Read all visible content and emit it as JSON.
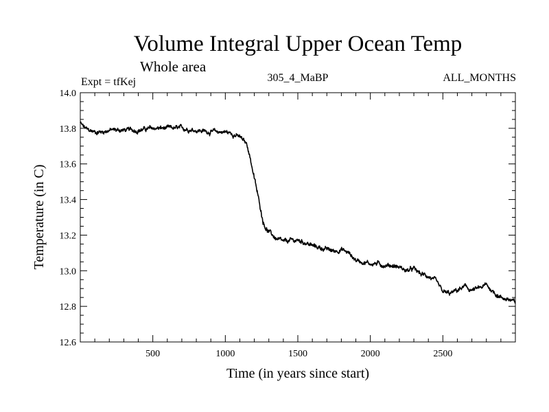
{
  "chart_data": {
    "type": "line",
    "title": "Volume Integral Upper Ocean Temp",
    "subtitle": "Whole area",
    "header_left": "Expt = tfKej",
    "header_center": "305_4_MaBP",
    "header_right": "ALL_MONTHS",
    "xlabel": "Time (in years since start)",
    "ylabel": "Temperature (in C)",
    "xlim": [
      0,
      3000
    ],
    "ylim": [
      12.6,
      14.0
    ],
    "xticks": [
      500,
      1000,
      1500,
      2000,
      2500
    ],
    "xtick_labels": [
      "500",
      "1000",
      "1500",
      "2000",
      "2500"
    ],
    "yticks": [
      12.6,
      12.8,
      13.0,
      13.2,
      13.4,
      13.6,
      13.8,
      14.0
    ],
    "ytick_labels": [
      "12.6",
      "12.8",
      "13.0",
      "13.2",
      "13.4",
      "13.6",
      "13.8",
      "14.0"
    ],
    "grid": false,
    "line_color": "#000000",
    "series": [
      {
        "x": [
          0,
          20,
          50,
          100,
          150,
          200,
          300,
          400,
          500,
          600,
          700,
          800,
          900,
          1000,
          1050,
          1100,
          1150,
          1170,
          1200,
          1230,
          1260,
          1280,
          1300,
          1350,
          1400,
          1450,
          1500,
          1550,
          1600,
          1650,
          1700,
          1750,
          1800,
          1850,
          1900,
          1950,
          2000,
          2050,
          2100,
          2150,
          2200,
          2250,
          2300,
          2350,
          2400,
          2450,
          2500,
          2550,
          2600,
          2650,
          2700,
          2750,
          2800,
          2850,
          2900,
          2950,
          3000
        ],
        "y": [
          13.83,
          13.81,
          13.79,
          13.78,
          13.78,
          13.79,
          13.79,
          13.79,
          13.8,
          13.8,
          13.8,
          13.79,
          13.78,
          13.78,
          13.77,
          13.75,
          13.71,
          13.64,
          13.52,
          13.4,
          13.28,
          13.24,
          13.22,
          13.18,
          13.16,
          13.17,
          13.17,
          13.16,
          13.14,
          13.13,
          13.12,
          13.11,
          13.12,
          13.1,
          13.06,
          13.05,
          13.04,
          13.04,
          13.03,
          13.03,
          13.02,
          13.0,
          13.01,
          12.98,
          12.97,
          12.94,
          12.88,
          12.87,
          12.89,
          12.91,
          12.89,
          12.9,
          12.92,
          12.88,
          12.85,
          12.84,
          12.82
        ]
      }
    ]
  }
}
